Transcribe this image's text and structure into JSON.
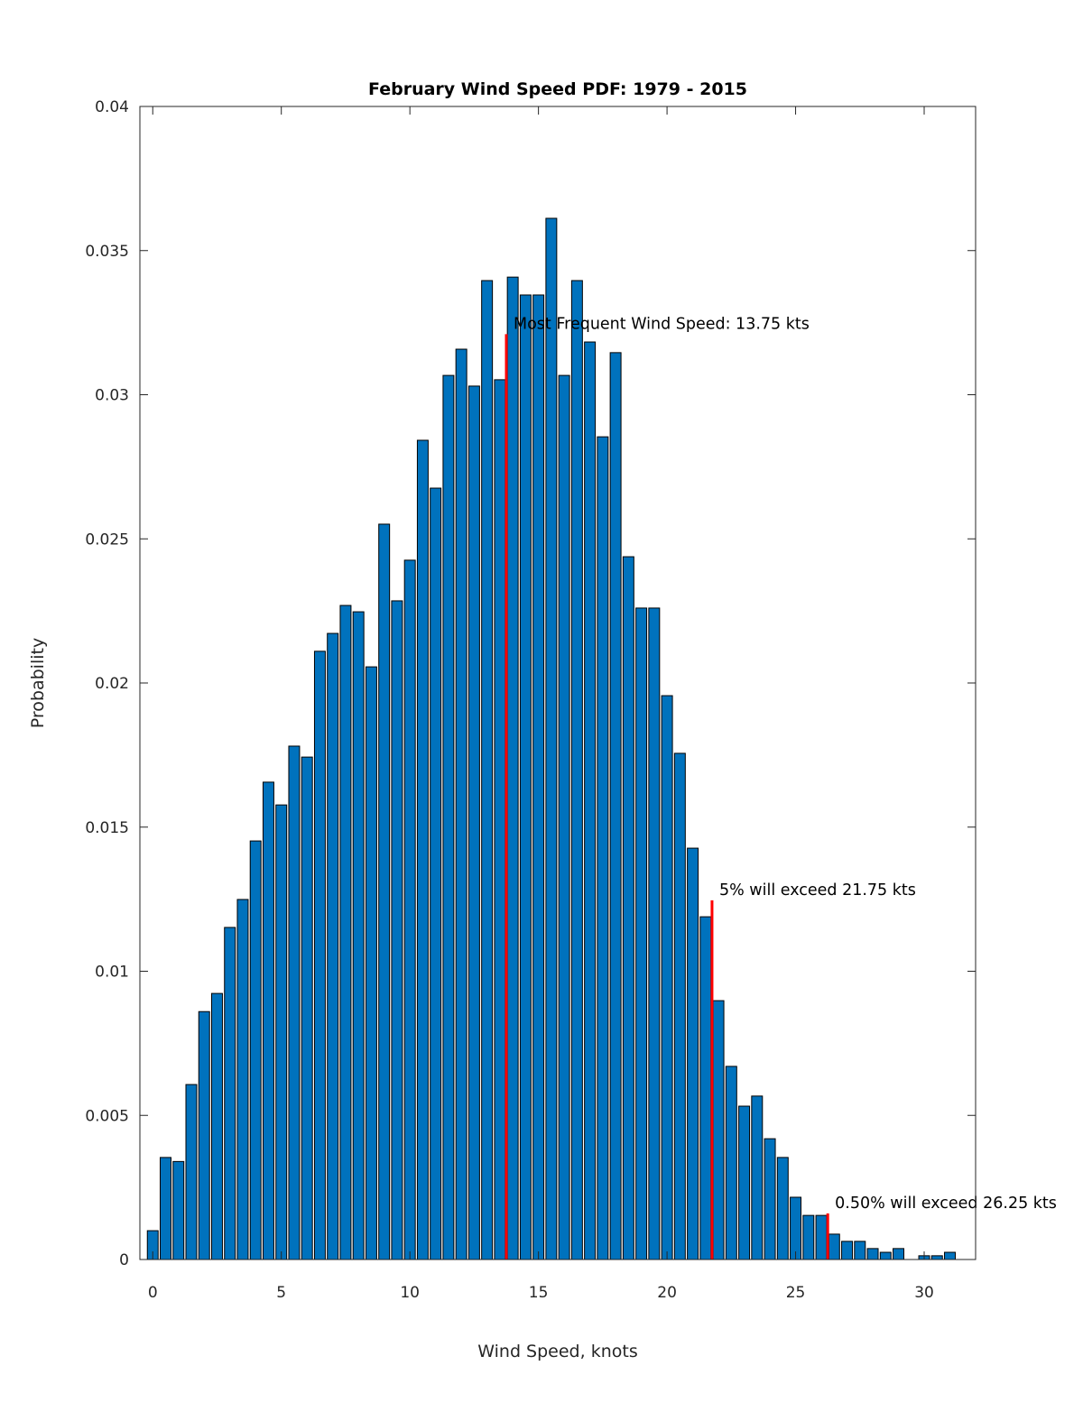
{
  "chart_data": {
    "type": "bar",
    "title": "February Wind Speed PDF: 1979 - 2015",
    "xlabel": "Wind Speed, knots",
    "ylabel": "Probability",
    "xlim": [
      -0.5,
      32
    ],
    "ylim": [
      0,
      0.04
    ],
    "grid": false,
    "bar_color": "#0072BD",
    "marker_color": "#FF0000",
    "x_ticks": [
      0,
      5,
      10,
      15,
      20,
      25,
      30
    ],
    "x_tick_labels": [
      "0",
      "5",
      "10",
      "15",
      "20",
      "25",
      "30"
    ],
    "y_ticks": [
      0,
      0.005,
      0.01,
      0.015,
      0.02,
      0.025,
      0.03,
      0.035,
      0.04
    ],
    "y_tick_labels": [
      "0",
      "0.005",
      "0.01",
      "0.015",
      "0.02",
      "0.025",
      "0.03",
      "0.035",
      "0.04"
    ],
    "x": [
      0,
      0.5,
      1,
      1.5,
      2,
      2.5,
      3,
      3.5,
      4,
      4.5,
      5,
      5.5,
      6,
      6.5,
      7,
      7.5,
      8,
      8.5,
      9,
      9.5,
      10,
      10.5,
      11,
      11.5,
      12,
      12.5,
      13,
      13.5,
      14,
      14.5,
      15,
      15.5,
      16,
      16.5,
      17,
      17.5,
      18,
      18.5,
      19,
      19.5,
      20,
      20.5,
      21,
      21.5,
      22,
      22.5,
      23,
      23.5,
      24,
      24.5,
      25,
      25.5,
      26,
      26.5,
      27,
      27.5,
      28,
      28.5,
      29,
      29.5,
      30,
      30.5,
      31
    ],
    "values": [
      0.001,
      0.00354,
      0.0034,
      0.00607,
      0.0086,
      0.00923,
      0.01152,
      0.01249,
      0.01452,
      0.01656,
      0.01577,
      0.01781,
      0.01743,
      0.0211,
      0.02172,
      0.02269,
      0.02247,
      0.02056,
      0.02551,
      0.02285,
      0.02426,
      0.02842,
      0.02676,
      0.03067,
      0.03158,
      0.0303,
      0.03396,
      0.03052,
      0.03408,
      0.03346,
      0.03346,
      0.03612,
      0.03067,
      0.03396,
      0.03183,
      0.02854,
      0.03146,
      0.02438,
      0.0226,
      0.0226,
      0.01956,
      0.01756,
      0.01427,
      0.01189,
      0.00898,
      0.0067,
      0.00532,
      0.00567,
      0.00419,
      0.00354,
      0.00216,
      0.00153,
      0.00153,
      0.00088,
      0.00063,
      0.00063,
      0.00038,
      0.00025,
      0.00038,
      0,
      0.00013,
      0.00013,
      0.00025
    ],
    "markers": [
      {
        "x": 13.75,
        "y": 0.0321,
        "text": "Most Frequent Wind Speed: 13.75 kts"
      },
      {
        "x": 21.75,
        "y": 0.01246,
        "text": "5% will exceed 21.75 kts"
      },
      {
        "x": 26.25,
        "y": 0.0016,
        "text": "0.50% will exceed 26.25 kts"
      }
    ]
  }
}
